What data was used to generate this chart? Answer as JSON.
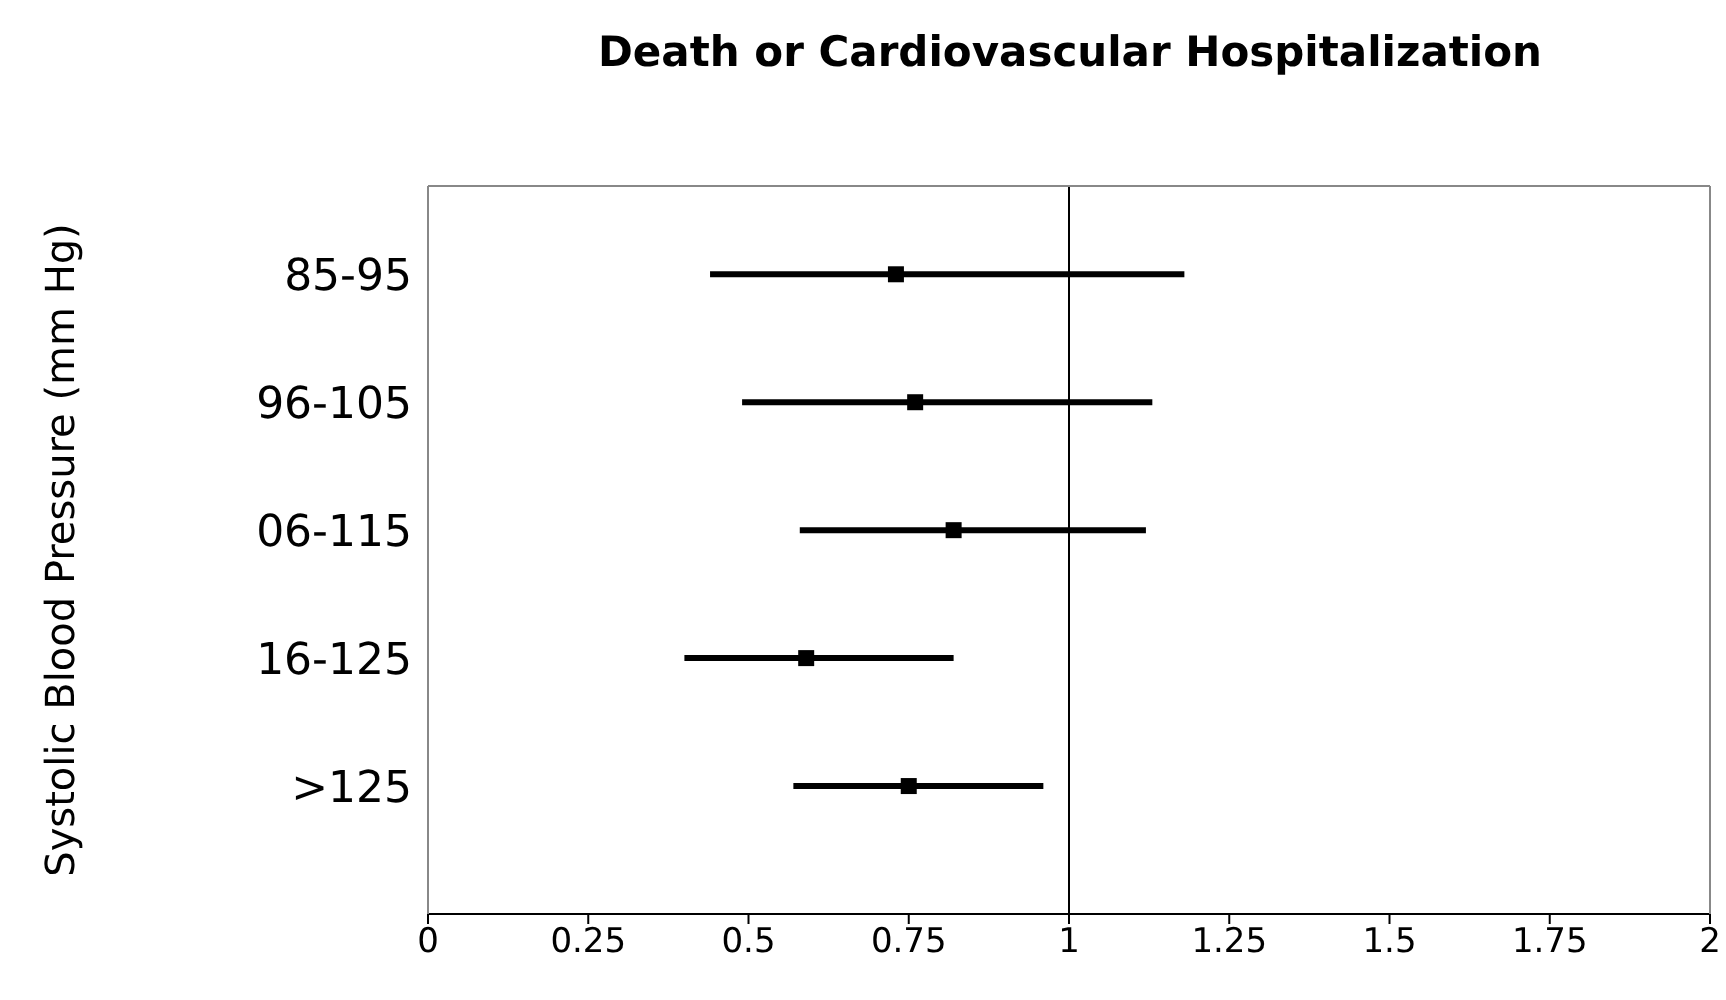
{
  "chart_data": {
    "type": "scatter",
    "title": "Death or Cardiovascular Hospitalization",
    "ylabel": "Systolic Blood Pressure (mm Hg)",
    "categories": [
      "85-95",
      "96-105",
      "06-115",
      "16-125",
      ">125"
    ],
    "orientation": "horizontal",
    "series": [
      {
        "color": "#000000",
        "values": [
          0.73,
          0.76,
          0.82,
          0.59,
          0.75
        ],
        "errors": [
          [
            0.44,
            1.18
          ],
          [
            0.49,
            1.13
          ],
          [
            0.58,
            1.12
          ],
          [
            0.4,
            0.82
          ],
          [
            0.57,
            0.96
          ]
        ]
      }
    ],
    "xlim": [
      0,
      2
    ],
    "xticks": [
      0,
      0.25,
      0.5,
      0.75,
      1,
      1.25,
      1.5,
      1.75,
      2
    ],
    "ref_lines": [
      {
        "axis": "x",
        "value": 1,
        "color": "#000000"
      }
    ],
    "marker": "square"
  }
}
